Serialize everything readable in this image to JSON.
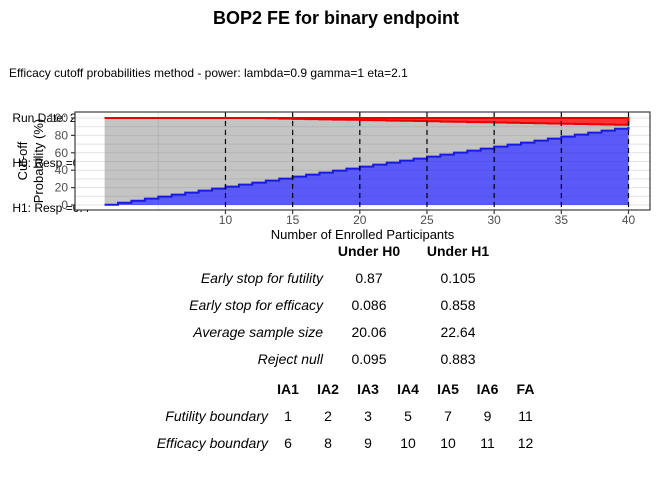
{
  "title": "BOP2 FE for binary endpoint",
  "subtitle_lines": [
    "Efficacy cutoff probabilities method - power: lambda=0.9 gamma=1 eta=2.1",
    " Run Date: 2025-09-11",
    " H0: Resp =0.2",
    " H1: Resp =0.4"
  ],
  "chart_data": {
    "type": "area",
    "xlabel": "Number of Enrolled Participants",
    "ylabel": "Cut-off Probability (%)",
    "ylabel_lines": [
      "Cut-off",
      "Probability (%)"
    ],
    "xlim": [
      -1.2,
      41.6
    ],
    "ylim": [
      0,
      100
    ],
    "x_ticks": [
      10,
      15,
      20,
      25,
      30,
      35,
      40
    ],
    "y_ticks": [
      0,
      20,
      40,
      60,
      80,
      100
    ],
    "analysis_lines": [
      10,
      15,
      20,
      25,
      30,
      35,
      40
    ],
    "grid": true,
    "legend": false,
    "x": [
      1,
      2,
      3,
      4,
      5,
      6,
      7,
      8,
      9,
      10,
      11,
      12,
      13,
      14,
      15,
      16,
      17,
      18,
      19,
      20,
      21,
      22,
      23,
      24,
      25,
      26,
      27,
      28,
      29,
      30,
      31,
      32,
      33,
      34,
      35,
      36,
      37,
      38,
      39,
      40
    ],
    "series": [
      {
        "name": "futility-cutoff-probability",
        "values": [
          0.4,
          2.7,
          5.0,
          7.3,
          9.6,
          11.9,
          14.2,
          16.5,
          18.8,
          21.1,
          23.4,
          25.7,
          28.0,
          30.3,
          32.6,
          34.9,
          37.2,
          39.5,
          41.8,
          44.1,
          46.4,
          48.7,
          51.0,
          53.3,
          55.6,
          57.9,
          60.2,
          62.5,
          64.8,
          67.1,
          69.4,
          71.7,
          74.0,
          76.3,
          78.6,
          80.9,
          83.2,
          85.5,
          87.7,
          90.0
        ]
      },
      {
        "name": "efficacy-cutoff-probability",
        "values": [
          100,
          100,
          100,
          100,
          100,
          100,
          100,
          100,
          100,
          100,
          100,
          100,
          99.6,
          99.3,
          99.0,
          98.7,
          98.4,
          98.2,
          97.9,
          97.6,
          97.3,
          97.0,
          96.8,
          96.5,
          96.2,
          95.9,
          95.6,
          95.3,
          95.1,
          94.8,
          94.5,
          94.2,
          93.9,
          93.7,
          93.4,
          93.1,
          92.8,
          92.5,
          92.3,
          92.0
        ]
      }
    ],
    "colors": {
      "futility_fill": "rgba(35,35,245,0.75)",
      "futility_line": "#1a1ade",
      "efficacy_fill": "rgba(250,25,25,0.88)",
      "efficacy_line": "#ea0000",
      "between_fill": "rgba(124,124,124,0.45)",
      "grid": "#e2e2e2",
      "panel_border": "#3c3c3c",
      "dashed_line": "#000000",
      "tick_text": "#4d4d4d"
    }
  },
  "oc_table": {
    "col_headers": [
      "Under H0",
      "Under H1"
    ],
    "rows": [
      {
        "label": "Early stop for futility",
        "h0": "0.87",
        "h1": "0.105"
      },
      {
        "label": "Early stop for efficacy",
        "h0": "0.086",
        "h1": "0.858"
      },
      {
        "label": "Average sample size",
        "h0": "20.06",
        "h1": "22.64"
      },
      {
        "label": "Reject null",
        "h0": "0.095",
        "h1": "0.883"
      }
    ]
  },
  "boundary_table": {
    "col_headers": [
      "IA1",
      "IA2",
      "IA3",
      "IA4",
      "IA5",
      "IA6",
      "FA"
    ],
    "rows": [
      {
        "label": "Futility boundary",
        "values": [
          "1",
          "2",
          "3",
          "5",
          "7",
          "9",
          "11"
        ]
      },
      {
        "label": "Efficacy boundary",
        "values": [
          "6",
          "8",
          "9",
          "10",
          "10",
          "11",
          "12"
        ]
      }
    ]
  }
}
